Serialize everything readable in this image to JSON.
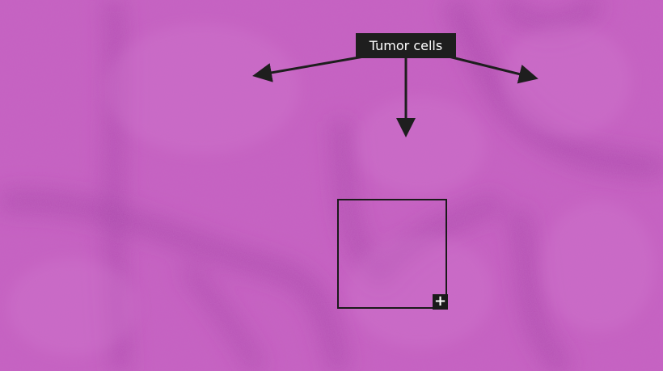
{
  "annotation": {
    "label": "Tumor cells",
    "label_background": "#1e1e1e",
    "label_text_color": "#ffffff"
  },
  "tissue": {
    "stain": "H&E",
    "base_color": "#c45ec0",
    "dark_band_color": "#9a3a9e",
    "light_color": "#d77fd4"
  },
  "zoom_control": {
    "icon": "plus-icon",
    "glyph": "+"
  }
}
